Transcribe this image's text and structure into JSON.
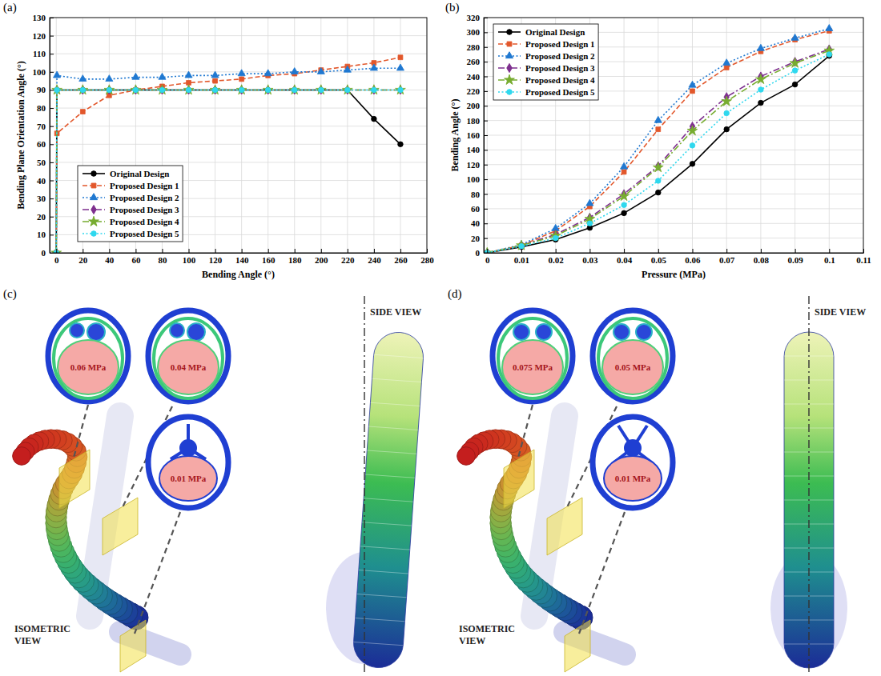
{
  "chart_data": [
    {
      "type": "line",
      "panel_label": "(a)",
      "x_label": "Bending Angle (°)",
      "y_label": "Bending Plane Orientation Angle (°)",
      "x": [
        0,
        0.5,
        20,
        40,
        60,
        80,
        100,
        120,
        140,
        160,
        180,
        200,
        220,
        240,
        260
      ],
      "xlim": [
        -5,
        280
      ],
      "xticks": [
        0,
        20,
        40,
        60,
        80,
        100,
        120,
        140,
        160,
        180,
        200,
        220,
        240,
        260,
        280
      ],
      "ylim": [
        0,
        130
      ],
      "yticks": [
        0,
        10,
        20,
        30,
        40,
        50,
        60,
        70,
        80,
        90,
        100,
        110,
        120,
        130
      ],
      "grid": true,
      "legend": "lower left",
      "series": [
        {
          "name": "Original Design",
          "color": "#000000",
          "marker": "circle",
          "line_style": "solid",
          "values": [
            0,
            90,
            90,
            90,
            90,
            90,
            90,
            90,
            90,
            90,
            90,
            90,
            90,
            74,
            60
          ]
        },
        {
          "name": "Proposed Design 1",
          "color": "#e2572b",
          "marker": "square",
          "line_style": "dashed",
          "values": [
            0,
            66,
            78,
            87,
            90,
            92,
            94,
            95,
            96,
            98,
            99,
            101,
            103,
            105,
            108
          ]
        },
        {
          "name": "Proposed Design 2",
          "color": "#1f78d1",
          "marker": "triangle",
          "line_style": "dotted",
          "values": [
            0,
            98,
            96,
            96,
            97,
            97,
            98,
            98,
            99,
            99,
            100,
            100,
            101,
            102,
            102
          ]
        },
        {
          "name": "Proposed Design 3",
          "color": "#7e2f8e",
          "marker": "diamond",
          "line_style": "dashdot",
          "values": [
            0,
            90,
            90,
            90,
            90,
            90,
            90,
            90,
            90,
            90,
            90,
            90,
            90,
            90,
            90
          ]
        },
        {
          "name": "Proposed Design 4",
          "color": "#77ac30",
          "marker": "star",
          "line_style": "dashdot",
          "values": [
            0,
            90,
            90,
            90,
            90,
            90,
            90,
            90,
            90,
            90,
            90,
            90,
            90,
            90,
            90
          ]
        },
        {
          "name": "Proposed Design 5",
          "color": "#2fd8ee",
          "marker": "circle",
          "line_style": "dotted",
          "values": [
            0,
            90,
            90,
            90,
            90,
            90,
            90,
            90,
            90,
            90,
            90,
            90,
            90,
            90,
            90
          ]
        }
      ]
    },
    {
      "type": "line",
      "panel_label": "(b)",
      "x_label": "Pressure (MPa)",
      "y_label": "Bending Angle (°)",
      "x": [
        0,
        0.01,
        0.02,
        0.03,
        0.04,
        0.05,
        0.06,
        0.07,
        0.08,
        0.09,
        0.1
      ],
      "xlim": [
        -0.001,
        0.11
      ],
      "xticks": [
        0,
        0.01,
        0.02,
        0.03,
        0.04,
        0.05,
        0.06,
        0.07,
        0.08,
        0.09,
        0.1,
        0.11
      ],
      "ylim": [
        0,
        320
      ],
      "yticks": [
        0,
        20,
        40,
        60,
        80,
        100,
        120,
        140,
        160,
        180,
        200,
        220,
        240,
        260,
        280,
        300,
        320
      ],
      "grid": true,
      "legend": "upper left",
      "series": [
        {
          "name": "Original Design",
          "color": "#000000",
          "marker": "circle",
          "line_style": "solid",
          "values": [
            0,
            8,
            18,
            34,
            54,
            82,
            121,
            168,
            204,
            229,
            268
          ]
        },
        {
          "name": "Proposed Design 1",
          "color": "#e2572b",
          "marker": "square",
          "line_style": "dashed",
          "values": [
            0,
            10,
            30,
            63,
            110,
            168,
            220,
            252,
            274,
            290,
            302
          ]
        },
        {
          "name": "Proposed Design 2",
          "color": "#1f78d1",
          "marker": "triangle",
          "line_style": "dotted",
          "values": [
            0,
            11,
            33,
            67,
            117,
            180,
            228,
            258,
            278,
            292,
            305
          ]
        },
        {
          "name": "Proposed Design 3",
          "color": "#7e2f8e",
          "marker": "diamond",
          "line_style": "dashdot",
          "values": [
            0,
            10,
            25,
            48,
            80,
            118,
            172,
            212,
            240,
            260,
            277
          ]
        },
        {
          "name": "Proposed Design 4",
          "color": "#77ac30",
          "marker": "star",
          "line_style": "dashdot",
          "values": [
            0,
            10,
            23,
            46,
            77,
            116,
            166,
            206,
            236,
            258,
            275
          ]
        },
        {
          "name": "Proposed Design 5",
          "color": "#2fd8ee",
          "marker": "circle",
          "line_style": "dotted",
          "values": [
            0,
            9,
            20,
            40,
            65,
            98,
            146,
            190,
            222,
            248,
            270
          ]
        }
      ]
    }
  ],
  "diagrams": [
    {
      "panel_label": "(c)",
      "sections": [
        "0.06 MPa",
        "0.04 MPa",
        "0.01 MPa"
      ],
      "isometric_view": "ISOMETRIC VIEW",
      "side_view": "SIDE VIEW"
    },
    {
      "panel_label": "(d)",
      "sections": [
        "0.075 MPa",
        "0.05 MPa",
        "0.01 MPa"
      ],
      "isometric_view": "ISOMETRIC VIEW",
      "side_view": "SIDE VIEW"
    }
  ]
}
